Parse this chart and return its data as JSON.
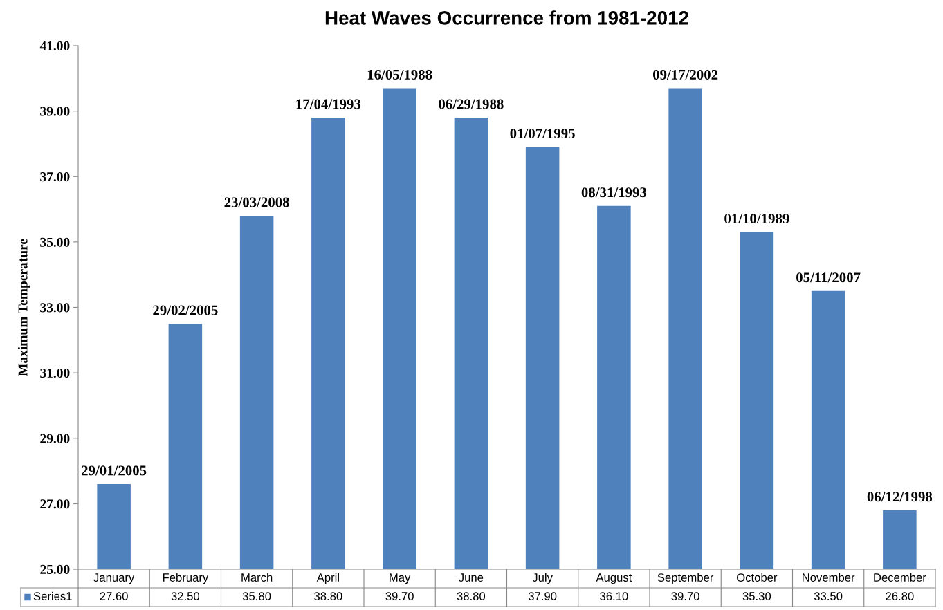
{
  "chart_data": {
    "type": "bar",
    "title": "Heat Waves Occurrence from 1981-2012",
    "ylabel": "Maximum Temperature",
    "categories": [
      "January",
      "February",
      "March",
      "April",
      "May",
      "June",
      "July",
      "August",
      "September",
      "October",
      "November",
      "December"
    ],
    "series": [
      {
        "name": "Series1",
        "color": "#4f81bd",
        "values": [
          27.6,
          32.5,
          35.8,
          38.8,
          39.7,
          38.8,
          37.9,
          36.1,
          39.7,
          35.3,
          33.5,
          26.8
        ],
        "value_labels": [
          "27.60",
          "32.50",
          "35.80",
          "38.80",
          "39.70",
          "38.80",
          "37.90",
          "36.10",
          "39.70",
          "35.30",
          "33.50",
          "26.80"
        ]
      }
    ],
    "annotations": [
      {
        "text": "29/01/2005",
        "x": "January",
        "y": 27.6
      },
      {
        "text": "29/02/2005",
        "x": "February",
        "y": 32.5
      },
      {
        "text": "23/03/2008",
        "x": "March",
        "y": 35.8
      },
      {
        "text": "17/04/1993",
        "x": "April",
        "y": 38.8
      },
      {
        "text": "16/05/1988",
        "x": "May",
        "y": 39.7
      },
      {
        "text": "06/29/1988",
        "x": "June",
        "y": 38.8
      },
      {
        "text": "01/07/1995",
        "x": "July",
        "y": 37.9
      },
      {
        "text": "08/31/1993",
        "x": "August",
        "y": 36.1
      },
      {
        "text": "09/17/2002",
        "x": "September",
        "y": 39.7
      },
      {
        "text": "01/10/1989",
        "x": "October",
        "y": 35.3
      },
      {
        "text": "05/11/2007",
        "x": "November",
        "y": 33.5
      },
      {
        "text": "06/12/1998",
        "x": "December",
        "y": 26.8
      }
    ],
    "ylim": [
      25,
      41
    ],
    "yticks": [
      {
        "value": 25,
        "label": "25.00"
      },
      {
        "value": 27,
        "label": "27.00"
      },
      {
        "value": 29,
        "label": "29.00"
      },
      {
        "value": 31,
        "label": "31.00"
      },
      {
        "value": 33,
        "label": "33.00"
      },
      {
        "value": 35,
        "label": "35.00"
      },
      {
        "value": 37,
        "label": "37.00"
      },
      {
        "value": 39,
        "label": "39.00"
      },
      {
        "value": 41,
        "label": "41.00"
      }
    ],
    "grid": false
  }
}
